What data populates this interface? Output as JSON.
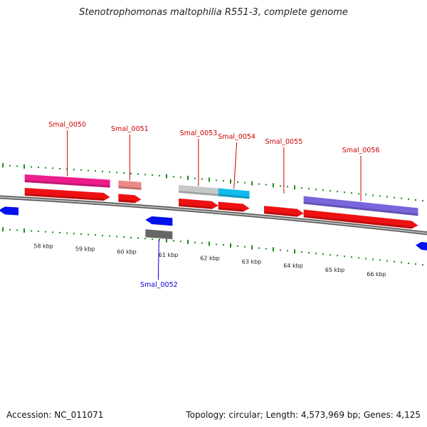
{
  "title": "Stenotrophomonas maltophilia R551-3, complete genome",
  "footer": {
    "accession": "Accession: NC_011071",
    "summary": "Topology: circular; Length: 4,573,969 bp; Genes: 4,125"
  },
  "colors": {
    "ruler": "#1a8c1a",
    "backbone": "#888888",
    "forward_gene": "#ee1111",
    "reverse_gene": "#0011ee",
    "label_forward": "#cc0000",
    "label_reverse": "#0000cc"
  },
  "chart_data": {
    "type": "genome-map",
    "scale_unit": "kbp",
    "kbp_ticks": [
      {
        "value": 58,
        "label": "58 kbp"
      },
      {
        "value": 59,
        "label": "59 kbp"
      },
      {
        "value": 60,
        "label": "60 kbp"
      },
      {
        "value": 61,
        "label": "61 kbp"
      },
      {
        "value": 62,
        "label": "62 kbp"
      },
      {
        "value": 63,
        "label": "63 kbp"
      },
      {
        "value": 64,
        "label": "64 kbp"
      },
      {
        "value": 65,
        "label": "65 kbp"
      },
      {
        "value": 66,
        "label": "66 kbp"
      }
    ],
    "genes": [
      {
        "id": "prev",
        "label": "",
        "strand": "-",
        "start": 56.9,
        "end": 57.35,
        "feature_color": ""
      },
      {
        "id": "Smal_0050",
        "label": "Smal_0050",
        "strand": "+",
        "start": 57.55,
        "end": 59.6,
        "feature_color": "#ee1d8c"
      },
      {
        "id": "Smal_0051",
        "label": "Smal_0051",
        "strand": "+",
        "start": 59.8,
        "end": 60.35,
        "feature_color": "#ee8888"
      },
      {
        "id": "Smal_0052",
        "label": "Smal_0052",
        "strand": "-",
        "start": 60.45,
        "end": 61.1,
        "feature_color": "#666666"
      },
      {
        "id": "Smal_0053",
        "label": "Smal_0053",
        "strand": "+",
        "start": 61.25,
        "end": 62.2,
        "feature_color": "#c8c8c8"
      },
      {
        "id": "Smal_0054",
        "label": "Smal_0054",
        "strand": "+",
        "start": 62.2,
        "end": 62.95,
        "feature_color": "#11bbee"
      },
      {
        "id": "Smal_0055",
        "label": "Smal_0055",
        "strand": "+",
        "start": 63.3,
        "end": 64.25,
        "feature_color": ""
      },
      {
        "id": "Smal_0056",
        "label": "Smal_0056",
        "strand": "+",
        "start": 64.25,
        "end": 67.0,
        "feature_color": "#7766dd"
      },
      {
        "id": "next",
        "label": "",
        "strand": "-",
        "start": 67.15,
        "end": 67.4,
        "feature_color": ""
      }
    ]
  }
}
